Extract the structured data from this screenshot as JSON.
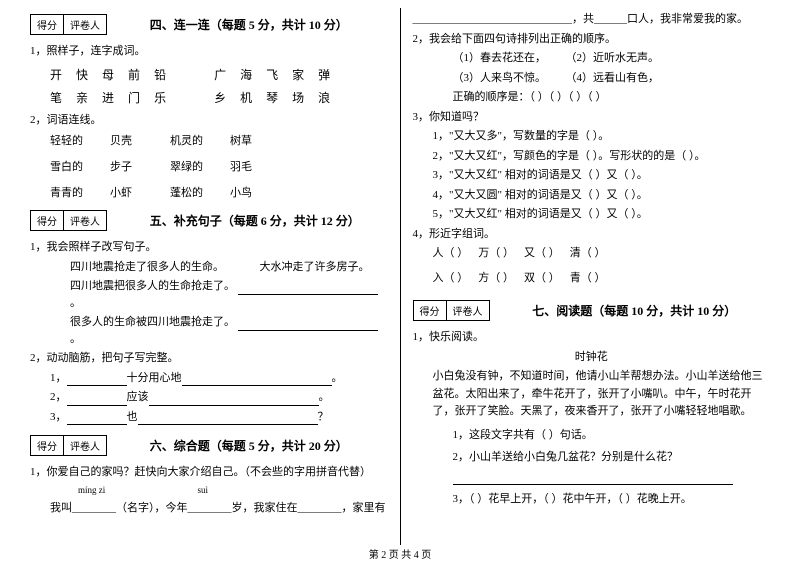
{
  "scorebox": {
    "score": "得分",
    "grader": "评卷人"
  },
  "sec4": {
    "title": "四、连一连（每题 5 分，共计 10 分）",
    "q1": "1，照样子，连字成词。",
    "row1a": [
      "开",
      "快",
      "母",
      "前",
      "铅"
    ],
    "row1b": [
      "广",
      "海",
      "飞",
      "家",
      "弹"
    ],
    "row2a": [
      "笔",
      "亲",
      "进",
      "门",
      "乐"
    ],
    "row2b": [
      "乡",
      "机",
      "琴",
      "场",
      "浪"
    ],
    "q2": "2，词语连线。",
    "grid": [
      [
        "轻轻的",
        "贝壳",
        "机灵的",
        "树草"
      ],
      [
        "雪白的",
        "步子",
        "翠绿的",
        "羽毛"
      ],
      [
        "青青的",
        "小虾",
        "蓬松的",
        "小鸟"
      ]
    ]
  },
  "sec5": {
    "title": "五、补充句子（每题 6 分，共计 12 分）",
    "q1": "1，我会照样子改写句子。",
    "s1": "四川地震抢走了很多人的生命。",
    "s2": "大水冲走了许多房子。",
    "s3": "四川地震把很多人的生命抢走了。",
    "s4": "很多人的生命被四川地震抢走了。",
    "q2": "2，动动脑筋，把句子写完整。",
    "line1_a": "1，",
    "line1_mid": "十分用心地",
    "line2_a": "2，",
    "line2_mid": "应该",
    "line3_a": "3，",
    "line3_mid": "也"
  },
  "sec6": {
    "title": "六、综合题（每题 5 分，共计 20 分）",
    "q1": "1，你爱自己的家吗？赶快向大家介绍自己。（不会些的字用拼音代替）",
    "pinyin1": "míng  zi",
    "pinyin2": "suì",
    "line": "我叫________（名字），今年________岁，我家住在________，家里有"
  },
  "rightTop": {
    "cont": "_____________________________，共______口人，我非常爱我的家。",
    "q2": "2，我会给下面四句诗排列出正确的顺序。",
    "p1": "（1）春去花还在，",
    "p2": "（2）近听水无声。",
    "p3": "（3）人来鸟不惊。",
    "p4": "（4）远看山有色，",
    "order": "正确的顺序是：（    ）（    ）（    ）（    ）",
    "q3": "3，你知道吗？",
    "k1": "1，\"又大又多\"，写数量的字是（        ）。",
    "k2": "2，\"又大又红\"，写颜色的字是（        ）。写形状的的是（        ）。",
    "k3": "3，\"又大又红\" 相对的词语是又（        ）又（        ）。",
    "k4": "4，\"又大又圆\" 相对的词语是又（        ）又（        ）。",
    "k5": "5，\"又大又红\" 相对的词语是又（        ）又（        ）。",
    "q4": "4，形近字组词。",
    "r1": [
      "人（        ）",
      "万（        ）",
      "又（        ）",
      "清（        ）"
    ],
    "r2": [
      "入（        ）",
      "方（        ）",
      "双（        ）",
      "青（        ）"
    ]
  },
  "sec7": {
    "title": "七、阅读题（每题 10 分，共计 10 分）",
    "q1": "1，快乐阅读。",
    "ptitle": "时钟花",
    "para": "小白兔没有钟，不知道时间，他请小山羊帮想办法。小山羊送给他三盆花。太阳出来了，牵牛花开了，张开了小嘴叭。中午，午时花开了，张开了笑脸。天黑了，夜来香开了，张开了小嘴轻轻地唱歌。",
    "s1": "1，这段文字共有（    ）句话。",
    "s2": "2，小山羊送给小白兔几盆花？分别是什么花？",
    "s3": "3，（    ）花早上开，（    ）花中午开，（    ）花晚上开。"
  },
  "footer": "第 2 页  共 4 页"
}
